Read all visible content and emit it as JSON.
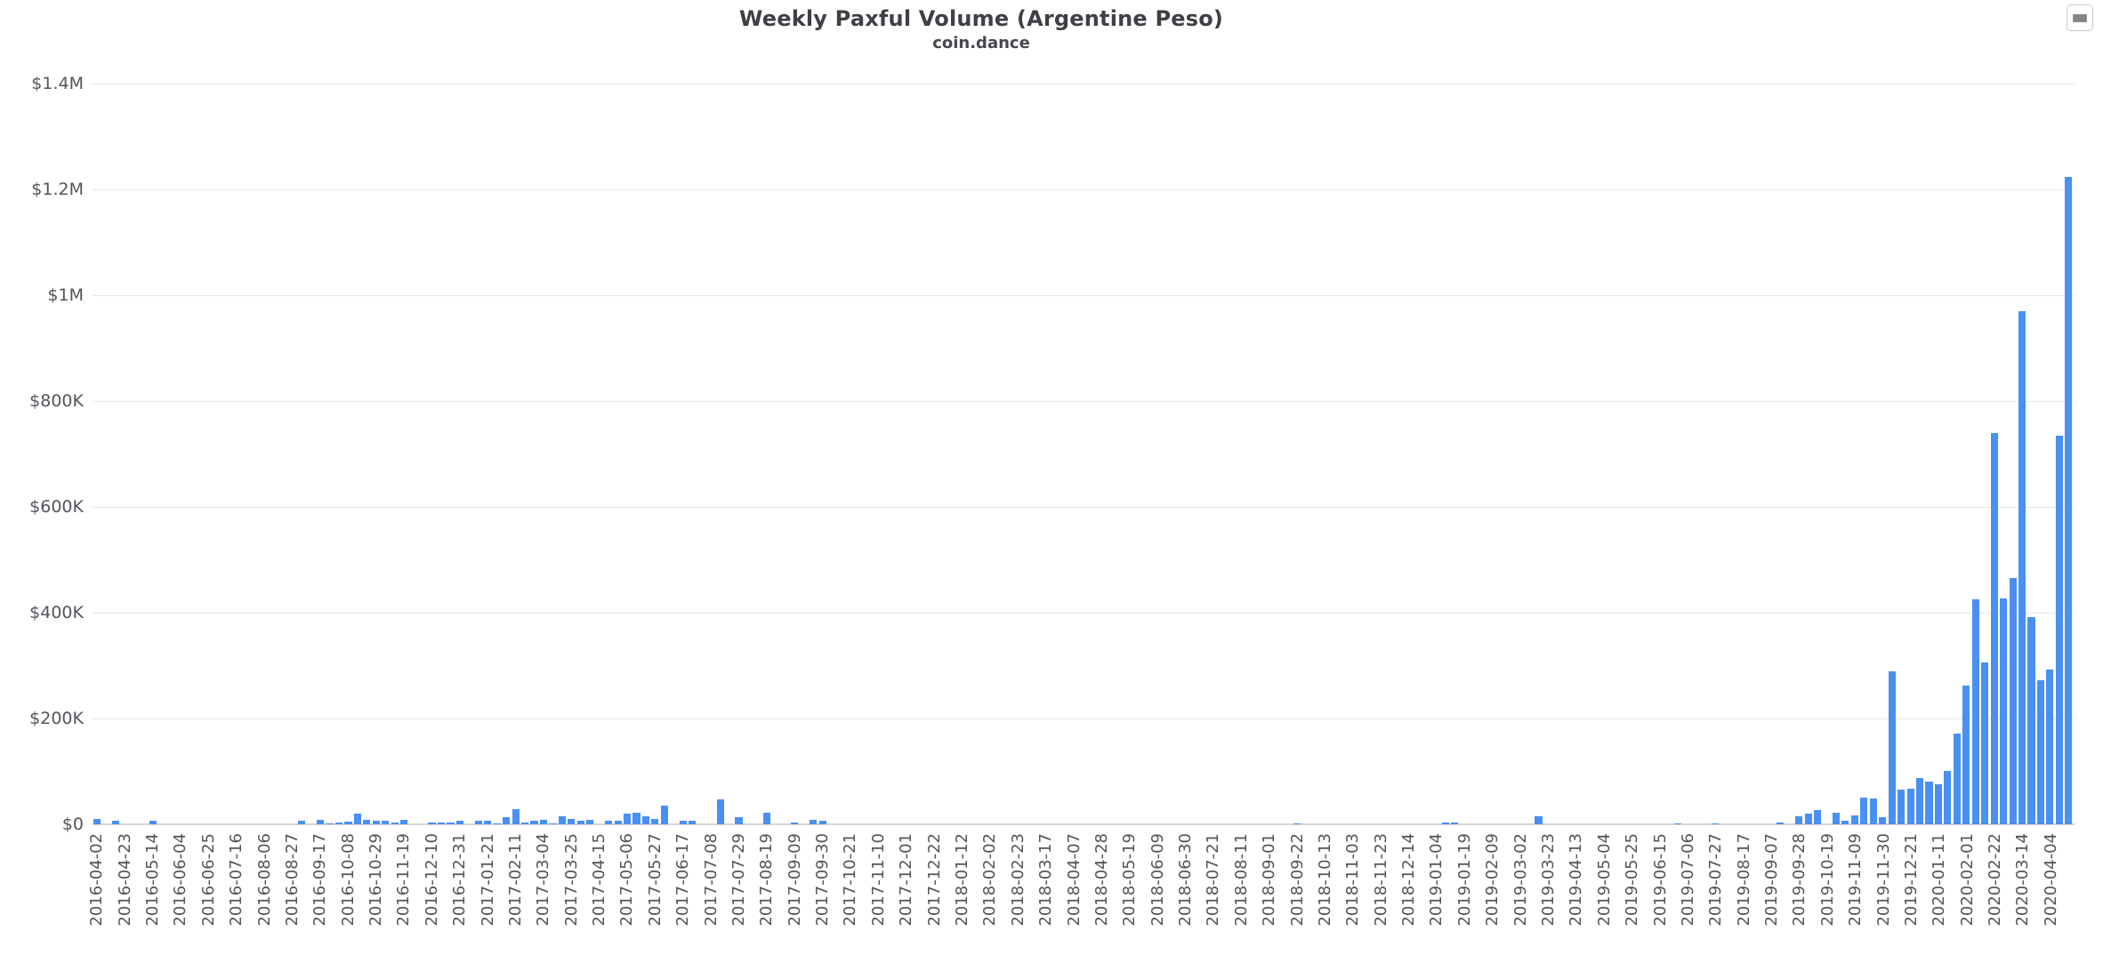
{
  "header": {
    "title": "Weekly Paxful Volume (Argentine Peso)",
    "subtitle": "coin.dance"
  },
  "toolbar": {
    "context_menu_icon": "hamburger-menu-icon"
  },
  "chart_data": {
    "type": "bar",
    "title": "Weekly Paxful Volume (Argentine Peso)",
    "subtitle": "coin.dance",
    "legend_position": "none",
    "grid": true,
    "bar_color": "#4a90f2",
    "value_unit": "USD thousands",
    "ylim": [
      0,
      1400000
    ],
    "y_axis": {
      "tick_interval": 200000,
      "tick_labels": [
        "$1.4M",
        "$1.2M",
        "$1M",
        "$800K",
        "$600K",
        "$400K",
        "$200K",
        "$0"
      ]
    },
    "x_axis": {
      "total_bars": 213,
      "label_every_n_bars": 3,
      "labels": [
        "2016-04-02",
        "2016-04-23",
        "2016-05-14",
        "2016-06-04",
        "2016-06-25",
        "2016-07-16",
        "2016-08-06",
        "2016-08-27",
        "2016-09-17",
        "2016-10-08",
        "2016-10-29",
        "2016-11-19",
        "2016-12-10",
        "2016-12-31",
        "2017-01-21",
        "2017-02-11",
        "2017-03-04",
        "2017-03-25",
        "2017-04-15",
        "2017-05-06",
        "2017-05-27",
        "2017-06-17",
        "2017-07-08",
        "2017-07-29",
        "2017-08-19",
        "2017-09-09",
        "2017-09-30",
        "2017-10-21",
        "2017-11-10",
        "2017-12-01",
        "2017-12-22",
        "2018-01-12",
        "2018-02-02",
        "2018-02-23",
        "2018-03-17",
        "2018-04-07",
        "2018-04-28",
        "2018-05-19",
        "2018-06-09",
        "2018-06-30",
        "2018-07-21",
        "2018-08-11",
        "2018-09-01",
        "2018-09-22",
        "2018-10-13",
        "2018-11-03",
        "2018-11-23",
        "2018-12-14",
        "2019-01-04",
        "2019-01-19",
        "2019-02-09",
        "2019-03-02",
        "2019-03-23",
        "2019-04-13",
        "2019-05-04",
        "2019-05-25",
        "2019-06-15",
        "2019-07-06",
        "2019-07-27",
        "2019-08-17",
        "2019-09-07",
        "2019-09-28",
        "2019-10-19",
        "2019-11-09",
        "2019-11-30",
        "2019-12-21",
        "2020-01-11",
        "2020-02-01",
        "2020-02-22",
        "2020-03-14",
        "2020-04-04"
      ]
    },
    "values_usd_k": [
      10,
      0,
      6,
      0,
      0,
      0,
      6,
      0,
      0,
      0,
      0,
      0,
      0,
      0,
      0,
      0,
      0,
      0,
      0,
      0,
      0,
      0,
      7,
      0,
      8,
      2,
      3,
      5,
      21,
      8,
      7,
      6,
      4,
      8,
      0,
      0,
      4,
      4,
      3,
      6,
      0,
      6,
      7,
      1,
      14,
      29,
      4,
      7,
      8,
      2,
      16,
      10,
      7,
      9,
      0,
      7,
      6,
      20,
      22,
      15,
      10,
      36,
      0,
      6,
      7,
      0,
      0,
      47,
      0,
      13,
      0,
      0,
      22,
      0,
      0,
      4,
      0,
      8,
      6,
      0,
      0,
      0,
      0,
      0,
      0,
      0,
      0,
      0,
      0,
      0,
      0,
      0,
      0,
      0,
      0,
      0,
      0,
      0,
      0,
      0,
      0,
      0,
      0,
      0,
      0,
      0,
      0,
      0,
      0,
      0,
      0,
      0,
      0,
      0,
      0,
      0,
      0,
      0,
      0,
      0,
      0,
      0,
      0,
      0,
      0,
      0,
      0,
      0,
      0,
      2,
      0,
      0,
      0,
      0,
      0,
      0,
      0,
      0,
      0,
      0,
      0,
      0,
      0,
      0,
      0,
      4,
      3,
      0,
      0,
      0,
      0,
      0,
      0,
      0,
      0,
      15,
      0,
      0,
      0,
      0,
      0,
      0,
      0,
      0,
      0,
      0,
      0,
      0,
      0,
      0,
      2,
      0,
      0,
      0,
      2,
      0,
      0,
      0,
      0,
      0,
      0,
      4,
      0,
      15,
      20,
      27,
      0,
      22,
      7,
      17,
      51,
      49,
      13,
      289,
      66,
      68,
      88,
      80,
      76,
      101,
      171,
      263,
      425,
      306,
      740,
      427,
      466,
      970,
      392,
      272,
      292,
      735,
      1224
    ]
  }
}
